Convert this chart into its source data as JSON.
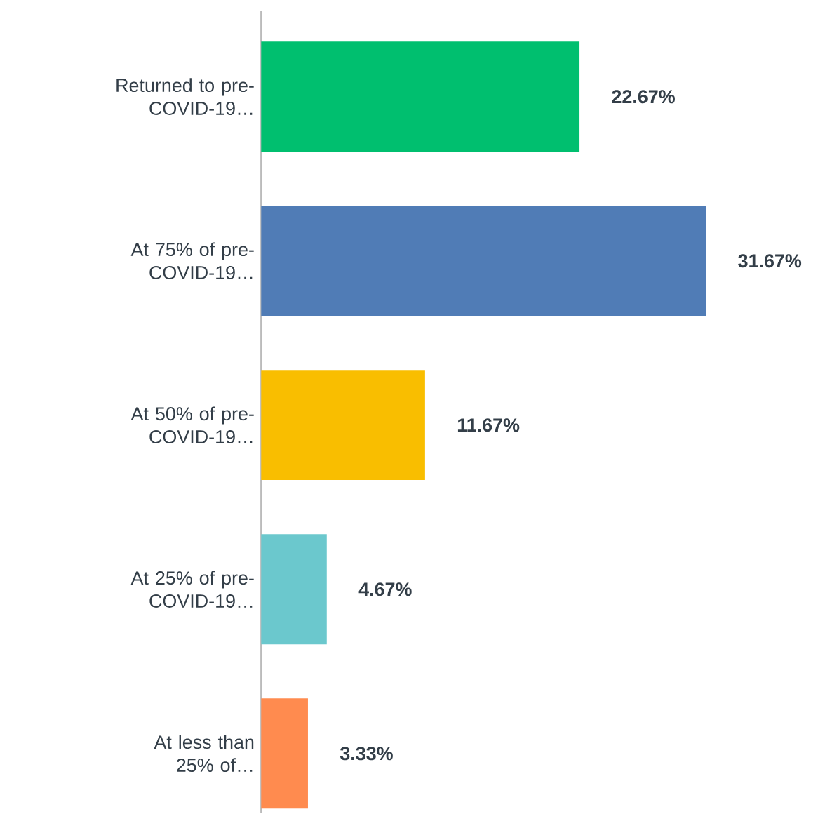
{
  "chart_data": {
    "type": "bar",
    "orientation": "horizontal",
    "categories": [
      "Returned to pre-COVID-19…",
      "At 75% of pre-COVID-19…",
      "At 50% of pre-COVID-19…",
      "At 25% of pre-COVID-19…",
      "At less than 25% of…"
    ],
    "values": [
      22.67,
      31.67,
      11.67,
      4.67,
      3.33
    ],
    "colors": [
      "#00bf6f",
      "#507cb6",
      "#f9be00",
      "#6bc8cd",
      "#ff8b4f"
    ],
    "value_labels": [
      "22.67%",
      "31.67%",
      "11.67%",
      "4.67%",
      "3.33%"
    ],
    "tick_labels": "y"
  }
}
